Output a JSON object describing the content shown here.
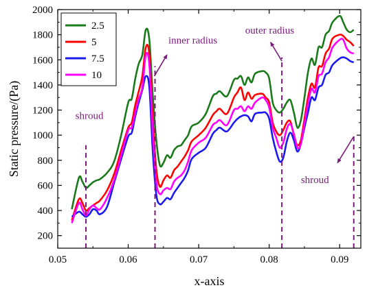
{
  "chart_data": {
    "type": "line",
    "xlabel": "x-axis",
    "ylabel": "Static pressure/(Pa)",
    "xlim": [
      0.05,
      0.093
    ],
    "ylim": [
      100,
      2000
    ],
    "xticks": [
      "0.05",
      "0.06",
      "0.07",
      "0.08",
      "0.09"
    ],
    "xtick_values": [
      0.05,
      0.06,
      0.07,
      0.08,
      0.09
    ],
    "yticks": [
      "200",
      "400",
      "600",
      "800",
      "1000",
      "1200",
      "1400",
      "1600",
      "1800",
      "2000"
    ],
    "ytick_values": [
      200,
      400,
      600,
      800,
      1000,
      1200,
      1400,
      1600,
      1800,
      2000
    ],
    "legend_position": "top-left",
    "series": [
      {
        "name": "2.5",
        "color": "#1a7a1a",
        "points": [
          [
            0.052,
            410
          ],
          [
            0.053,
            660
          ],
          [
            0.0535,
            630
          ],
          [
            0.054,
            580
          ],
          [
            0.0545,
            600
          ],
          [
            0.055,
            625
          ],
          [
            0.0555,
            640
          ],
          [
            0.056,
            650
          ],
          [
            0.057,
            700
          ],
          [
            0.058,
            790
          ],
          [
            0.059,
            1000
          ],
          [
            0.06,
            1260
          ],
          [
            0.0605,
            1290
          ],
          [
            0.061,
            1450
          ],
          [
            0.0615,
            1570
          ],
          [
            0.062,
            1640
          ],
          [
            0.0625,
            1840
          ],
          [
            0.063,
            1760
          ],
          [
            0.0635,
            1300
          ],
          [
            0.064,
            950
          ],
          [
            0.0645,
            760
          ],
          [
            0.065,
            780
          ],
          [
            0.0655,
            840
          ],
          [
            0.066,
            820
          ],
          [
            0.0665,
            880
          ],
          [
            0.067,
            910
          ],
          [
            0.0675,
            920
          ],
          [
            0.068,
            960
          ],
          [
            0.0685,
            1000
          ],
          [
            0.069,
            1070
          ],
          [
            0.07,
            1100
          ],
          [
            0.071,
            1170
          ],
          [
            0.072,
            1310
          ],
          [
            0.0725,
            1330
          ],
          [
            0.073,
            1350
          ],
          [
            0.074,
            1310
          ],
          [
            0.075,
            1440
          ],
          [
            0.0755,
            1450
          ],
          [
            0.076,
            1470
          ],
          [
            0.0765,
            1400
          ],
          [
            0.077,
            1460
          ],
          [
            0.0775,
            1420
          ],
          [
            0.078,
            1490
          ],
          [
            0.079,
            1510
          ],
          [
            0.0795,
            1500
          ],
          [
            0.08,
            1450
          ],
          [
            0.0805,
            1260
          ],
          [
            0.081,
            1200
          ],
          [
            0.0815,
            1180
          ],
          [
            0.082,
            1210
          ],
          [
            0.0825,
            1260
          ],
          [
            0.083,
            1280
          ],
          [
            0.0835,
            1180
          ],
          [
            0.084,
            1060
          ],
          [
            0.0845,
            1120
          ],
          [
            0.085,
            1300
          ],
          [
            0.0855,
            1500
          ],
          [
            0.086,
            1610
          ],
          [
            0.0865,
            1560
          ],
          [
            0.087,
            1700
          ],
          [
            0.0875,
            1700
          ],
          [
            0.088,
            1800
          ],
          [
            0.0885,
            1830
          ],
          [
            0.089,
            1900
          ],
          [
            0.09,
            1950
          ],
          [
            0.0905,
            1900
          ],
          [
            0.091,
            1840
          ],
          [
            0.0915,
            1820
          ],
          [
            0.092,
            1840
          ]
        ]
      },
      {
        "name": "5",
        "color": "#ff0000",
        "points": [
          [
            0.052,
            320
          ],
          [
            0.053,
            490
          ],
          [
            0.0535,
            460
          ],
          [
            0.054,
            400
          ],
          [
            0.0545,
            420
          ],
          [
            0.055,
            440
          ],
          [
            0.0555,
            460
          ],
          [
            0.056,
            480
          ],
          [
            0.057,
            560
          ],
          [
            0.058,
            690
          ],
          [
            0.059,
            880
          ],
          [
            0.06,
            1060
          ],
          [
            0.0605,
            1100
          ],
          [
            0.061,
            1240
          ],
          [
            0.0615,
            1350
          ],
          [
            0.062,
            1470
          ],
          [
            0.0625,
            1700
          ],
          [
            0.063,
            1640
          ],
          [
            0.0635,
            1100
          ],
          [
            0.064,
            720
          ],
          [
            0.0645,
            590
          ],
          [
            0.065,
            640
          ],
          [
            0.0655,
            680
          ],
          [
            0.066,
            660
          ],
          [
            0.0665,
            720
          ],
          [
            0.067,
            750
          ],
          [
            0.0675,
            790
          ],
          [
            0.068,
            830
          ],
          [
            0.0685,
            880
          ],
          [
            0.069,
            950
          ],
          [
            0.07,
            1000
          ],
          [
            0.071,
            1060
          ],
          [
            0.072,
            1160
          ],
          [
            0.0725,
            1190
          ],
          [
            0.073,
            1210
          ],
          [
            0.074,
            1170
          ],
          [
            0.075,
            1300
          ],
          [
            0.0755,
            1340
          ],
          [
            0.076,
            1380
          ],
          [
            0.0765,
            1280
          ],
          [
            0.077,
            1340
          ],
          [
            0.0775,
            1290
          ],
          [
            0.078,
            1320
          ],
          [
            0.079,
            1330
          ],
          [
            0.0795,
            1300
          ],
          [
            0.08,
            1260
          ],
          [
            0.0805,
            1100
          ],
          [
            0.081,
            1030
          ],
          [
            0.0815,
            1000
          ],
          [
            0.082,
            1040
          ],
          [
            0.0825,
            1100
          ],
          [
            0.083,
            1110
          ],
          [
            0.0835,
            1000
          ],
          [
            0.084,
            920
          ],
          [
            0.0845,
            960
          ],
          [
            0.085,
            1130
          ],
          [
            0.0855,
            1300
          ],
          [
            0.086,
            1410
          ],
          [
            0.0865,
            1380
          ],
          [
            0.087,
            1540
          ],
          [
            0.0875,
            1550
          ],
          [
            0.088,
            1650
          ],
          [
            0.0885,
            1690
          ],
          [
            0.089,
            1770
          ],
          [
            0.09,
            1800
          ],
          [
            0.0905,
            1790
          ],
          [
            0.091,
            1760
          ],
          [
            0.0915,
            1740
          ],
          [
            0.092,
            1710
          ]
        ]
      },
      {
        "name": "7.5",
        "color": "#1a1aee",
        "points": [
          [
            0.052,
            350
          ],
          [
            0.053,
            390
          ],
          [
            0.0535,
            370
          ],
          [
            0.054,
            350
          ],
          [
            0.0545,
            370
          ],
          [
            0.055,
            410
          ],
          [
            0.0555,
            400
          ],
          [
            0.056,
            370
          ],
          [
            0.057,
            430
          ],
          [
            0.058,
            620
          ],
          [
            0.059,
            810
          ],
          [
            0.06,
            990
          ],
          [
            0.0605,
            1020
          ],
          [
            0.061,
            1150
          ],
          [
            0.0615,
            1260
          ],
          [
            0.062,
            1360
          ],
          [
            0.0625,
            1470
          ],
          [
            0.063,
            1380
          ],
          [
            0.0635,
            850
          ],
          [
            0.064,
            520
          ],
          [
            0.0645,
            450
          ],
          [
            0.065,
            470
          ],
          [
            0.0655,
            500
          ],
          [
            0.066,
            490
          ],
          [
            0.0665,
            540
          ],
          [
            0.067,
            580
          ],
          [
            0.0675,
            620
          ],
          [
            0.068,
            660
          ],
          [
            0.0685,
            720
          ],
          [
            0.069,
            810
          ],
          [
            0.07,
            860
          ],
          [
            0.071,
            900
          ],
          [
            0.072,
            1010
          ],
          [
            0.0725,
            1040
          ],
          [
            0.073,
            1060
          ],
          [
            0.074,
            1030
          ],
          [
            0.075,
            1100
          ],
          [
            0.0755,
            1130
          ],
          [
            0.076,
            1150
          ],
          [
            0.0765,
            1160
          ],
          [
            0.077,
            1150
          ],
          [
            0.0775,
            1110
          ],
          [
            0.078,
            1170
          ],
          [
            0.079,
            1180
          ],
          [
            0.0795,
            1180
          ],
          [
            0.08,
            1130
          ],
          [
            0.0805,
            980
          ],
          [
            0.081,
            870
          ],
          [
            0.0815,
            790
          ],
          [
            0.082,
            820
          ],
          [
            0.0825,
            950
          ],
          [
            0.083,
            1020
          ],
          [
            0.0835,
            960
          ],
          [
            0.084,
            870
          ],
          [
            0.0845,
            930
          ],
          [
            0.085,
            1060
          ],
          [
            0.0855,
            1180
          ],
          [
            0.086,
            1300
          ],
          [
            0.0865,
            1280
          ],
          [
            0.087,
            1380
          ],
          [
            0.0875,
            1400
          ],
          [
            0.088,
            1480
          ],
          [
            0.0885,
            1500
          ],
          [
            0.089,
            1560
          ],
          [
            0.09,
            1610
          ],
          [
            0.0905,
            1620
          ],
          [
            0.091,
            1610
          ],
          [
            0.0915,
            1590
          ],
          [
            0.092,
            1580
          ]
        ]
      },
      {
        "name": "10",
        "color": "#ff00ff",
        "points": [
          [
            0.052,
            300
          ],
          [
            0.053,
            460
          ],
          [
            0.0535,
            410
          ],
          [
            0.054,
            360
          ],
          [
            0.0545,
            410
          ],
          [
            0.055,
            440
          ],
          [
            0.0555,
            420
          ],
          [
            0.056,
            410
          ],
          [
            0.057,
            500
          ],
          [
            0.058,
            640
          ],
          [
            0.059,
            840
          ],
          [
            0.06,
            1040
          ],
          [
            0.0605,
            1060
          ],
          [
            0.061,
            1180
          ],
          [
            0.0615,
            1290
          ],
          [
            0.062,
            1380
          ],
          [
            0.0625,
            1640
          ],
          [
            0.063,
            1560
          ],
          [
            0.0635,
            1000
          ],
          [
            0.064,
            620
          ],
          [
            0.0645,
            530
          ],
          [
            0.065,
            560
          ],
          [
            0.0655,
            580
          ],
          [
            0.066,
            570
          ],
          [
            0.0665,
            630
          ],
          [
            0.067,
            660
          ],
          [
            0.0675,
            680
          ],
          [
            0.068,
            720
          ],
          [
            0.0685,
            790
          ],
          [
            0.069,
            880
          ],
          [
            0.07,
            940
          ],
          [
            0.071,
            980
          ],
          [
            0.072,
            1080
          ],
          [
            0.0725,
            1100
          ],
          [
            0.073,
            1120
          ],
          [
            0.074,
            1080
          ],
          [
            0.075,
            1200
          ],
          [
            0.0755,
            1210
          ],
          [
            0.076,
            1230
          ],
          [
            0.0765,
            1190
          ],
          [
            0.077,
            1230
          ],
          [
            0.0775,
            1210
          ],
          [
            0.078,
            1260
          ],
          [
            0.079,
            1300
          ],
          [
            0.0795,
            1280
          ],
          [
            0.08,
            1220
          ],
          [
            0.0805,
            1060
          ],
          [
            0.081,
            980
          ],
          [
            0.0815,
            900
          ],
          [
            0.082,
            940
          ],
          [
            0.0825,
            1050
          ],
          [
            0.083,
            1090
          ],
          [
            0.0835,
            1010
          ],
          [
            0.084,
            900
          ],
          [
            0.0845,
            930
          ],
          [
            0.085,
            1090
          ],
          [
            0.0855,
            1250
          ],
          [
            0.086,
            1370
          ],
          [
            0.0865,
            1340
          ],
          [
            0.087,
            1470
          ],
          [
            0.0875,
            1490
          ],
          [
            0.088,
            1580
          ],
          [
            0.0885,
            1620
          ],
          [
            0.089,
            1700
          ],
          [
            0.09,
            1760
          ],
          [
            0.0905,
            1760
          ],
          [
            0.091,
            1690
          ],
          [
            0.0915,
            1660
          ],
          [
            0.092,
            1650
          ]
        ]
      }
    ],
    "vlines": [
      {
        "x": 0.054,
        "y_top": 920
      },
      {
        "x": 0.0638,
        "y_top": 1550
      },
      {
        "x": 0.0818,
        "y_top": 1620
      },
      {
        "x": 0.092,
        "y_top": 990
      }
    ],
    "annotations": [
      {
        "text": "shroud",
        "x": 0.0525,
        "y": 1130
      },
      {
        "text": "inner radius",
        "x": 0.0657,
        "y": 1730
      },
      {
        "text": "outer radius",
        "x": 0.0766,
        "y": 1810
      },
      {
        "text": "shroud",
        "x": 0.0845,
        "y": 620
      }
    ],
    "arrows": [
      {
        "x1": 0.0637,
        "y1": 1470,
        "x2": 0.0655,
        "y2": 1640
      },
      {
        "x1": 0.0818,
        "y1": 1590,
        "x2": 0.0802,
        "y2": 1740
      },
      {
        "x1": 0.092,
        "y1": 990,
        "x2": 0.0897,
        "y2": 780
      }
    ],
    "annotation_color": "#7a1a7a",
    "grid": false
  }
}
